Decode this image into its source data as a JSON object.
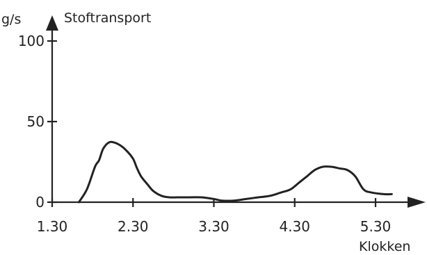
{
  "chart_data": {
    "type": "line",
    "title": "",
    "ylabel_unit": "g/s",
    "ylabel": "Stoftransport",
    "xlabel": "Klokken",
    "xlim": [
      1.5,
      5.5
    ],
    "ylim": [
      0,
      100
    ],
    "x_ticks": [
      {
        "value": 1.5,
        "label": "1.30"
      },
      {
        "value": 2.5,
        "label": "2.30"
      },
      {
        "value": 3.5,
        "label": "3.30"
      },
      {
        "value": 4.5,
        "label": "4.30"
      },
      {
        "value": 5.5,
        "label": "5.30"
      }
    ],
    "y_ticks": [
      {
        "value": 0,
        "label": "0"
      },
      {
        "value": 50,
        "label": "50"
      },
      {
        "value": 100,
        "label": "100"
      }
    ],
    "grid": false,
    "legend": "none",
    "series": [
      {
        "x": [
          1.83,
          1.93,
          2.03,
          2.08,
          2.13,
          2.2,
          2.27,
          2.35,
          2.42,
          2.5,
          2.55,
          2.6,
          2.68,
          2.75,
          2.85,
          2.95,
          3.05,
          3.2,
          3.35,
          3.5,
          3.6,
          3.75,
          3.9,
          4.05,
          4.2,
          4.33,
          4.45,
          4.55,
          4.65,
          4.75,
          4.85,
          4.95,
          5.05,
          5.15,
          5.25,
          5.35,
          5.45,
          5.6,
          5.7
        ],
        "y": [
          0,
          8,
          22,
          26,
          33,
          37,
          37,
          35,
          32,
          27,
          21,
          16,
          11,
          7,
          4,
          3,
          3,
          3,
          3,
          2,
          1,
          1,
          2,
          3,
          4,
          6,
          8,
          12,
          16,
          20,
          22,
          22,
          21,
          20,
          16,
          8,
          6,
          5,
          5
        ]
      }
    ]
  }
}
